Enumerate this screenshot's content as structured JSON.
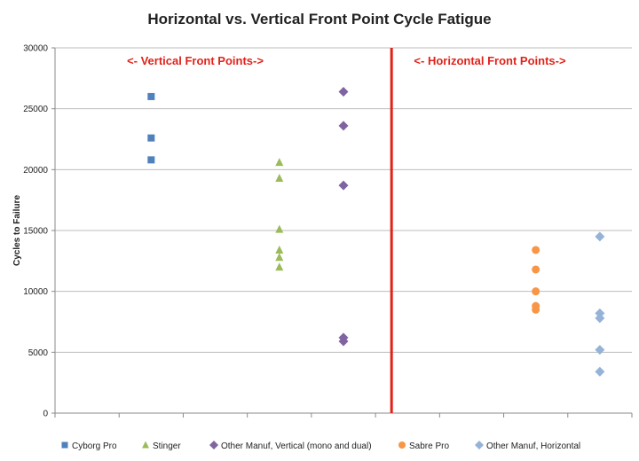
{
  "chart_data": {
    "type": "scatter",
    "title": "Horizontal vs. Vertical Front Point Cycle Fatigue",
    "xlabel": "",
    "ylabel": "Cycles to Failure",
    "ylim": [
      0,
      30000
    ],
    "yticks": [
      "0",
      "5000",
      "10000",
      "15000",
      "20000",
      "25000",
      "30000"
    ],
    "xlim": [
      0,
      9
    ],
    "grid": "horizontal",
    "legend_position": "bottom",
    "divider_x": 5.25,
    "divider_color": "#e0231a",
    "annotations": [
      {
        "text": "<- Vertical Front Points->",
        "color": "#e0231a"
      },
      {
        "text": "<- Horizontal Front Points->",
        "color": "#e0231a"
      }
    ],
    "series": [
      {
        "name": "Cyborg Pro",
        "marker": "square",
        "color": "#4f81bd",
        "points": [
          [
            1.5,
            26000
          ],
          [
            1.5,
            22600
          ],
          [
            1.5,
            20800
          ]
        ]
      },
      {
        "name": "Stinger",
        "marker": "triangle",
        "color": "#9bbb59",
        "points": [
          [
            3.5,
            20600
          ],
          [
            3.5,
            19300
          ],
          [
            3.5,
            15100
          ],
          [
            3.5,
            13400
          ],
          [
            3.5,
            12800
          ],
          [
            3.5,
            12000
          ]
        ]
      },
      {
        "name": "Other Manuf, Vertical (mono and dual)",
        "marker": "diamond",
        "color": "#8064a2",
        "points": [
          [
            4.5,
            26400
          ],
          [
            4.5,
            23600
          ],
          [
            4.5,
            18700
          ],
          [
            4.5,
            6200
          ],
          [
            4.5,
            5900
          ]
        ]
      },
      {
        "name": "Sabre Pro",
        "marker": "circle",
        "color": "#f79646",
        "points": [
          [
            7.5,
            13400
          ],
          [
            7.5,
            11800
          ],
          [
            7.5,
            10000
          ],
          [
            7.5,
            8800
          ],
          [
            7.5,
            8500
          ]
        ]
      },
      {
        "name": "Other Manuf, Horizontal",
        "marker": "diamond",
        "color": "#95b3d7",
        "points": [
          [
            8.5,
            14500
          ],
          [
            8.5,
            8200
          ],
          [
            8.5,
            7800
          ],
          [
            8.5,
            5200
          ],
          [
            8.5,
            3400
          ]
        ]
      }
    ]
  }
}
